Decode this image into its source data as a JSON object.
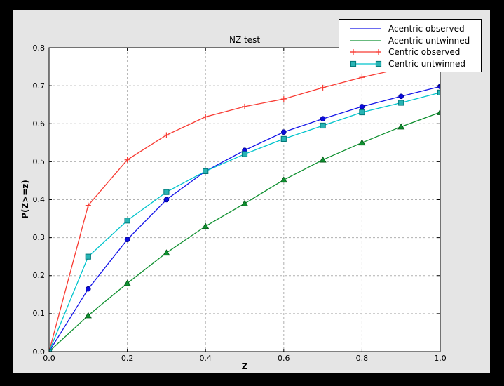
{
  "figure": {
    "outer_background": "#000000",
    "background": "#e5e5e5",
    "plot_background": "#ffffff",
    "grid_color": "#b0b0b0",
    "spine_color": "#000000"
  },
  "chart_data": {
    "type": "line",
    "title": "NZ test",
    "xlabel": "Z",
    "ylabel": "P(Z>=z)",
    "xlim": [
      0.0,
      1.0
    ],
    "ylim": [
      0.0,
      0.8
    ],
    "xticks": [
      0.0,
      0.2,
      0.4,
      0.6,
      0.8,
      1.0
    ],
    "xtick_labels": [
      "0.0",
      "0.2",
      "0.4",
      "0.6",
      "0.8",
      "1.0"
    ],
    "yticks": [
      0.0,
      0.1,
      0.2,
      0.3,
      0.4,
      0.5,
      0.6,
      0.7,
      0.8
    ],
    "ytick_labels": [
      "0.0",
      "0.1",
      "0.2",
      "0.3",
      "0.4",
      "0.5",
      "0.6",
      "0.7",
      "0.8"
    ],
    "grid": true,
    "legend_position": "top-right",
    "x": [
      0.0,
      0.1,
      0.2,
      0.3,
      0.4,
      0.5,
      0.6,
      0.7,
      0.8,
      0.9,
      1.0
    ],
    "series": [
      {
        "name": "Acentric observed",
        "color": "#1414e8",
        "marker": "circle",
        "marker_fill": "#0b0bdd",
        "marker_edge": "#000090",
        "legend_markers": false,
        "values": [
          0.0,
          0.165,
          0.295,
          0.4,
          0.475,
          0.53,
          0.578,
          0.613,
          0.645,
          0.672,
          0.698
        ]
      },
      {
        "name": "Acentric untwinned",
        "color": "#0f9030",
        "marker": "triangle",
        "marker_fill": "#0f9030",
        "marker_edge": "#045515",
        "legend_markers": false,
        "values": [
          0.0,
          0.095,
          0.18,
          0.26,
          0.33,
          0.39,
          0.452,
          0.505,
          0.55,
          0.592,
          0.63
        ]
      },
      {
        "name": "Centric observed",
        "color": "#f83b33",
        "marker": "plus",
        "marker_fill": "#f83b33",
        "marker_edge": "#f83b33",
        "legend_markers": true,
        "values": [
          0.0,
          0.385,
          0.505,
          0.57,
          0.618,
          0.645,
          0.665,
          0.695,
          0.722,
          0.745,
          0.763
        ]
      },
      {
        "name": "Centric untwinned",
        "color": "#00c4cc",
        "marker": "square",
        "marker_fill": "#28b4b4",
        "marker_edge": "#007878",
        "legend_markers": true,
        "values": [
          0.0,
          0.25,
          0.345,
          0.42,
          0.475,
          0.52,
          0.56,
          0.595,
          0.63,
          0.655,
          0.682
        ]
      }
    ]
  }
}
